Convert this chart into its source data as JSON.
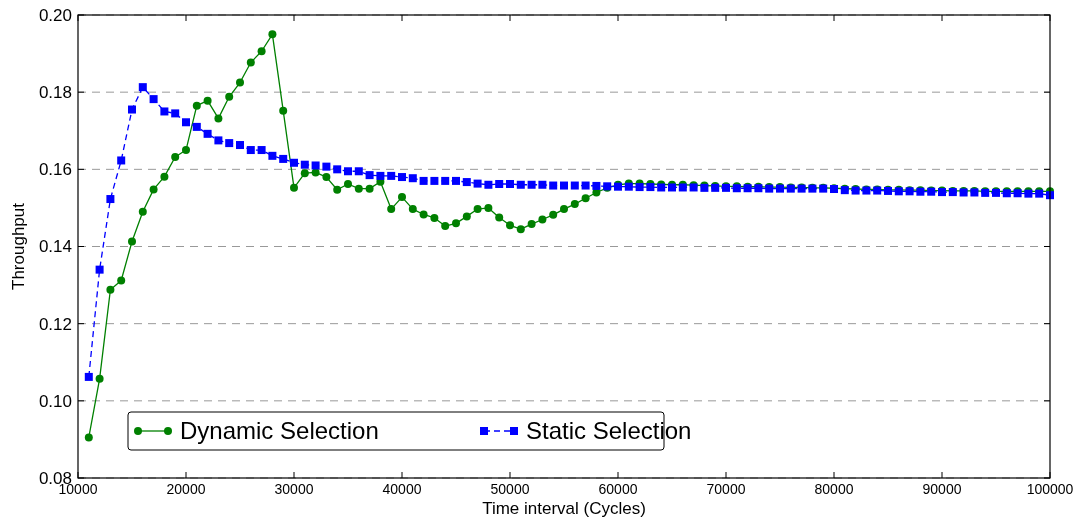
{
  "chart_data": {
    "type": "line",
    "xlabel": "Time interval (Cycles)",
    "ylabel": "Throughput",
    "x": [
      11000,
      12000,
      13000,
      14000,
      15000,
      16000,
      17000,
      18000,
      19000,
      20000,
      21000,
      22000,
      23000,
      24000,
      25000,
      26000,
      27000,
      28000,
      29000,
      30000,
      31000,
      32000,
      33000,
      34000,
      35000,
      36000,
      37000,
      38000,
      39000,
      40000,
      41000,
      42000,
      43000,
      44000,
      45000,
      46000,
      47000,
      48000,
      49000,
      50000,
      51000,
      52000,
      53000,
      54000,
      55000,
      56000,
      57000,
      58000,
      59000,
      60000,
      61000,
      62000,
      63000,
      64000,
      65000,
      66000,
      67000,
      68000,
      69000,
      70000,
      71000,
      72000,
      73000,
      74000,
      75000,
      76000,
      77000,
      78000,
      79000,
      80000,
      81000,
      82000,
      83000,
      84000,
      85000,
      86000,
      87000,
      88000,
      89000,
      90000,
      91000,
      92000,
      93000,
      94000,
      95000,
      96000,
      97000,
      98000,
      99000,
      100000
    ],
    "series": [
      {
        "name": "Dynamic Selection",
        "color": "#008000",
        "marker": "circle",
        "line_style": "solid",
        "values": [
          0.0905,
          0.1057,
          0.1288,
          0.1312,
          0.1413,
          0.149,
          0.1548,
          0.1581,
          0.1632,
          0.165,
          0.1765,
          0.1778,
          0.1732,
          0.1788,
          0.1825,
          0.1877,
          0.1906,
          0.195,
          0.1752,
          0.1552,
          0.159,
          0.1592,
          0.158,
          0.1547,
          0.1562,
          0.155,
          0.155,
          0.1568,
          0.1497,
          0.1528,
          0.1497,
          0.1483,
          0.1474,
          0.1453,
          0.146,
          0.1478,
          0.1497,
          0.15,
          0.1475,
          0.1455,
          0.1445,
          0.1458,
          0.147,
          0.1482,
          0.1497,
          0.151,
          0.1525,
          0.154,
          0.1552,
          0.156,
          0.1563,
          0.1563,
          0.1562,
          0.1561,
          0.156,
          0.156,
          0.1559,
          0.1558,
          0.1557,
          0.1556,
          0.1556,
          0.1555,
          0.1555,
          0.1554,
          0.1554,
          0.1553,
          0.1553,
          0.1552,
          0.1552,
          0.1551,
          0.155,
          0.1549,
          0.1548,
          0.1548,
          0.1547,
          0.1547,
          0.1546,
          0.1546,
          0.1545,
          0.1545,
          0.1544,
          0.1544,
          0.1544,
          0.1543,
          0.1543,
          0.1543,
          0.1543,
          0.1543,
          0.1543,
          0.1543
        ]
      },
      {
        "name": "Static Selection",
        "color": "#0000ff",
        "marker": "square",
        "line_style": "dashed",
        "values": [
          0.1062,
          0.134,
          0.1523,
          0.1623,
          0.1755,
          0.1813,
          0.1782,
          0.175,
          0.1745,
          0.1722,
          0.171,
          0.1692,
          0.1675,
          0.1668,
          0.1663,
          0.165,
          0.165,
          0.1635,
          0.1627,
          0.1617,
          0.1612,
          0.161,
          0.1607,
          0.16,
          0.1595,
          0.1595,
          0.1585,
          0.1583,
          0.1583,
          0.158,
          0.1577,
          0.157,
          0.157,
          0.157,
          0.157,
          0.1567,
          0.1563,
          0.156,
          0.1562,
          0.1562,
          0.156,
          0.156,
          0.156,
          0.1558,
          0.1558,
          0.1558,
          0.1558,
          0.1557,
          0.1556,
          0.1555,
          0.1555,
          0.1554,
          0.1554,
          0.1553,
          0.1553,
          0.1553,
          0.1553,
          0.1552,
          0.1552,
          0.1552,
          0.1551,
          0.1551,
          0.1551,
          0.155,
          0.155,
          0.155,
          0.155,
          0.155,
          0.155,
          0.1549,
          0.1546,
          0.1545,
          0.1545,
          0.1545,
          0.1544,
          0.1543,
          0.1543,
          0.1542,
          0.1542,
          0.1541,
          0.1541,
          0.154,
          0.154,
          0.1539,
          0.1539,
          0.1538,
          0.1538,
          0.1537,
          0.1537,
          0.1533
        ]
      }
    ],
    "xlim": [
      10000,
      100000
    ],
    "xticks": [
      10000,
      20000,
      30000,
      40000,
      50000,
      60000,
      70000,
      80000,
      90000,
      100000
    ],
    "ylim": [
      0.08,
      0.2
    ],
    "yticks": [
      {
        "value": 0.08,
        "label": "0.08"
      },
      {
        "value": 0.1,
        "label": "0.10"
      },
      {
        "value": 0.12,
        "label": "0.12"
      },
      {
        "value": 0.14,
        "label": "0.14"
      },
      {
        "value": 0.16,
        "label": "0.16"
      },
      {
        "value": 0.18,
        "label": "0.18"
      },
      {
        "value": 0.2,
        "label": "0.20"
      }
    ],
    "grid": "y",
    "legend": "bottom left"
  }
}
